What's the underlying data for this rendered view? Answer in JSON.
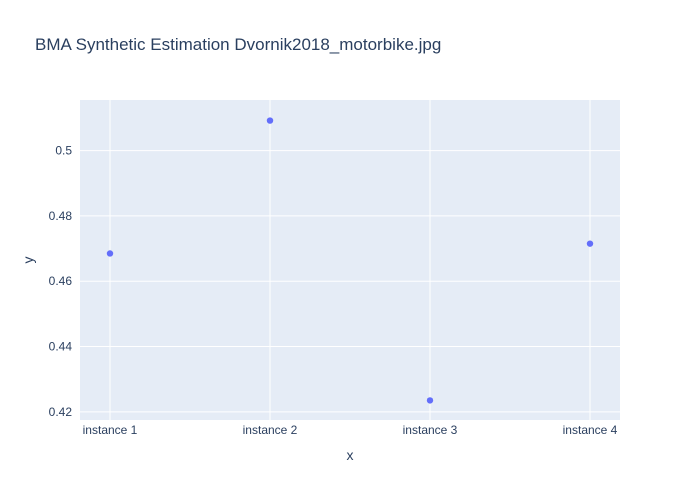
{
  "colors": {
    "plot_bg": "#e5ecf6",
    "grid": "#ffffff",
    "marker": "#636efa",
    "text": "#2a3f5f"
  },
  "chart_data": {
    "type": "scatter",
    "title": "BMA Synthetic Estimation Dvornik2018_motorbike.jpg",
    "xlabel": "x",
    "ylabel": "y",
    "categories": [
      "instance 1",
      "instance 2",
      "instance 3",
      "instance 4"
    ],
    "series": [
      {
        "values": [
          0.4685,
          0.5092,
          0.4235,
          0.4715
        ]
      }
    ],
    "ylim": [
      0.4175,
      0.5155
    ],
    "yticks": [
      {
        "value": 0.42,
        "label": "0.42"
      },
      {
        "value": 0.44,
        "label": "0.44"
      },
      {
        "value": 0.46,
        "label": "0.46"
      },
      {
        "value": 0.48,
        "label": "0.48"
      },
      {
        "value": 0.5,
        "label": "0.5"
      }
    ],
    "grid": true,
    "legend": "none"
  }
}
